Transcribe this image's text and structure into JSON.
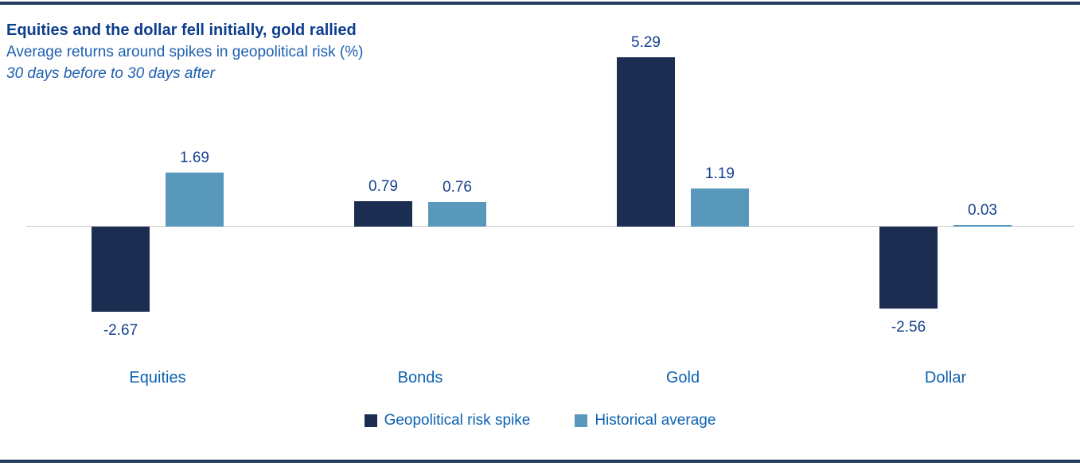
{
  "header": {
    "title": "Equities and the dollar fell initially, gold rallied",
    "subtitle": "Average returns around spikes in geopolitical risk (%)",
    "period_note": "30 days before to 30 days after"
  },
  "chart_data": {
    "type": "bar",
    "categories": [
      "Equities",
      "Bonds",
      "Gold",
      "Dollar"
    ],
    "series": [
      {
        "name": "Geopolitical risk spike",
        "color": "#1c2d52",
        "values": [
          -2.67,
          0.79,
          5.29,
          -2.56
        ]
      },
      {
        "name": "Historical average",
        "color": "#5898bb",
        "values": [
          1.69,
          0.76,
          1.19,
          0.03
        ]
      }
    ],
    "title": "Equities and the dollar fell initially, gold rallied",
    "subtitle": "Average returns around spikes in geopolitical risk (%)",
    "annotation": "30 days before to 30 days after",
    "xlabel": "",
    "ylabel": "",
    "ylim": [
      -3.5,
      6
    ],
    "grid": false,
    "value_labels": true,
    "value_label_format": "0.00",
    "legend_position": "bottom"
  },
  "colors": {
    "risk_spike_bar": "#1c2d52",
    "historical_bar": "#5898bb",
    "title_text": "#0d3d8d",
    "subtitle_text": "#1d5fb0",
    "value_label_text": "#16418e",
    "category_text": "#0d62b2",
    "axis_line": "#c9c9c9",
    "rule": "#263a5e",
    "background": "#ffffff"
  }
}
